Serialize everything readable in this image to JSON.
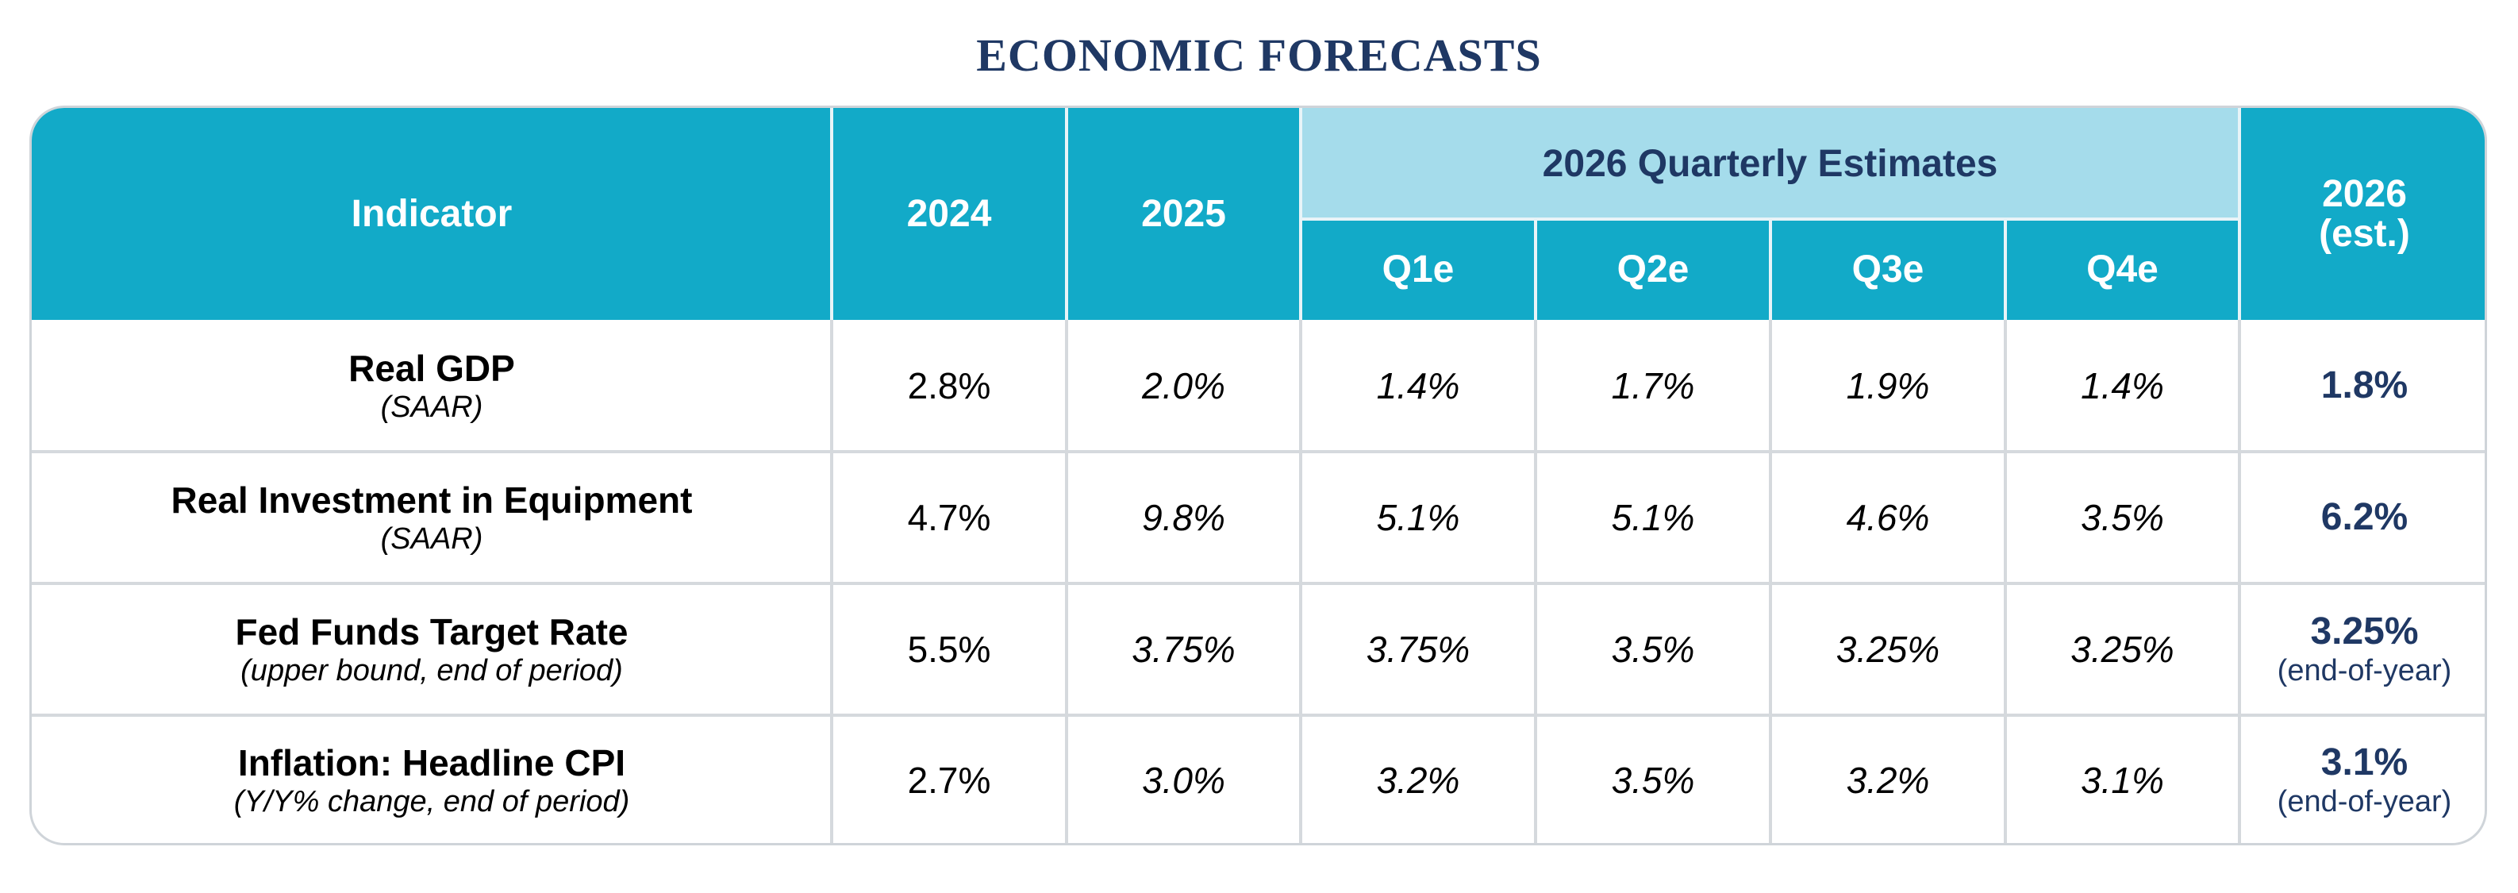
{
  "title": "ECONOMIC FORECASTS",
  "header": {
    "indicator": "Indicator",
    "y2024": "2024",
    "y2025": "2025",
    "group": "2026 Quarterly Estimates",
    "q1": "Q1e",
    "q2": "Q2e",
    "q3": "Q3e",
    "q4": "Q4e",
    "est_line1": "2026",
    "est_line2": "(est.)"
  },
  "rows": [
    {
      "name": "Real GDP",
      "sub": "(SAAR)",
      "v2024": "2.8%",
      "v2025": "2.0%",
      "q1": "1.4%",
      "q2": "1.7%",
      "q3": "1.9%",
      "q4": "1.4%",
      "est": "1.8%",
      "est_note": ""
    },
    {
      "name": "Real Investment in Equipment",
      "sub": "(SAAR)",
      "v2024": "4.7%",
      "v2025": "9.8%",
      "q1": "5.1%",
      "q2": "5.1%",
      "q3": "4.6%",
      "q4": "3.5%",
      "est": "6.2%",
      "est_note": ""
    },
    {
      "name": "Fed Funds Target Rate",
      "sub": "(upper bound, end of period)",
      "v2024": "5.5%",
      "v2025": "3.75%",
      "q1": "3.75%",
      "q2": "3.5%",
      "q3": "3.25%",
      "q4": "3.25%",
      "est": "3.25%",
      "est_note": "(end-of-year)"
    },
    {
      "name": "Inflation: Headline CPI",
      "sub": "(Y/Y% change, end of period)",
      "v2024": "2.7%",
      "v2025": "3.0%",
      "q1": "3.2%",
      "q2": "3.5%",
      "q3": "3.2%",
      "q4": "3.1%",
      "est": "3.1%",
      "est_note": "(end-of-year)"
    }
  ]
}
